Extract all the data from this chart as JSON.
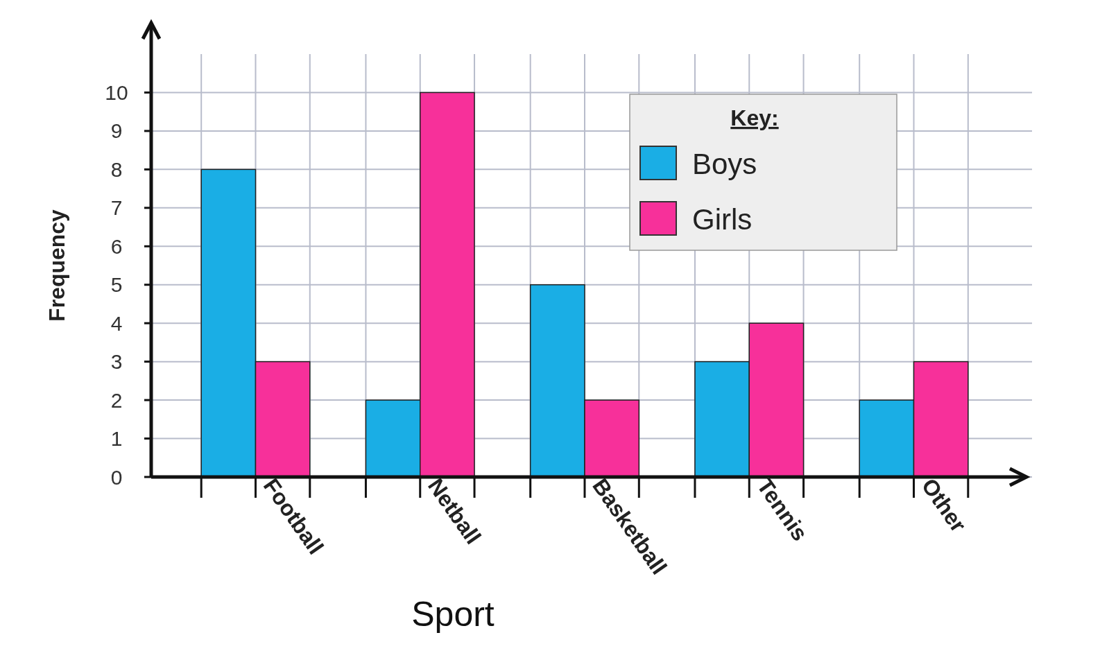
{
  "chart_data": {
    "type": "bar",
    "xlabel": "Sport",
    "ylabel": "Frequency",
    "legend_title": "Key:",
    "categories": [
      "Football",
      "Netball",
      "Basketball",
      "Tennis",
      "Other"
    ],
    "series": [
      {
        "name": "Boys",
        "color": "#1aaee5",
        "values": [
          8,
          2,
          5,
          3,
          2
        ]
      },
      {
        "name": "Girls",
        "color": "#f7309a",
        "values": [
          3,
          10,
          2,
          4,
          3
        ]
      }
    ],
    "ylim": [
      0,
      11
    ],
    "yticks": [
      0,
      1,
      2,
      3,
      4,
      5,
      6,
      7,
      8,
      9,
      10
    ],
    "grid": true,
    "legend": "top right"
  }
}
